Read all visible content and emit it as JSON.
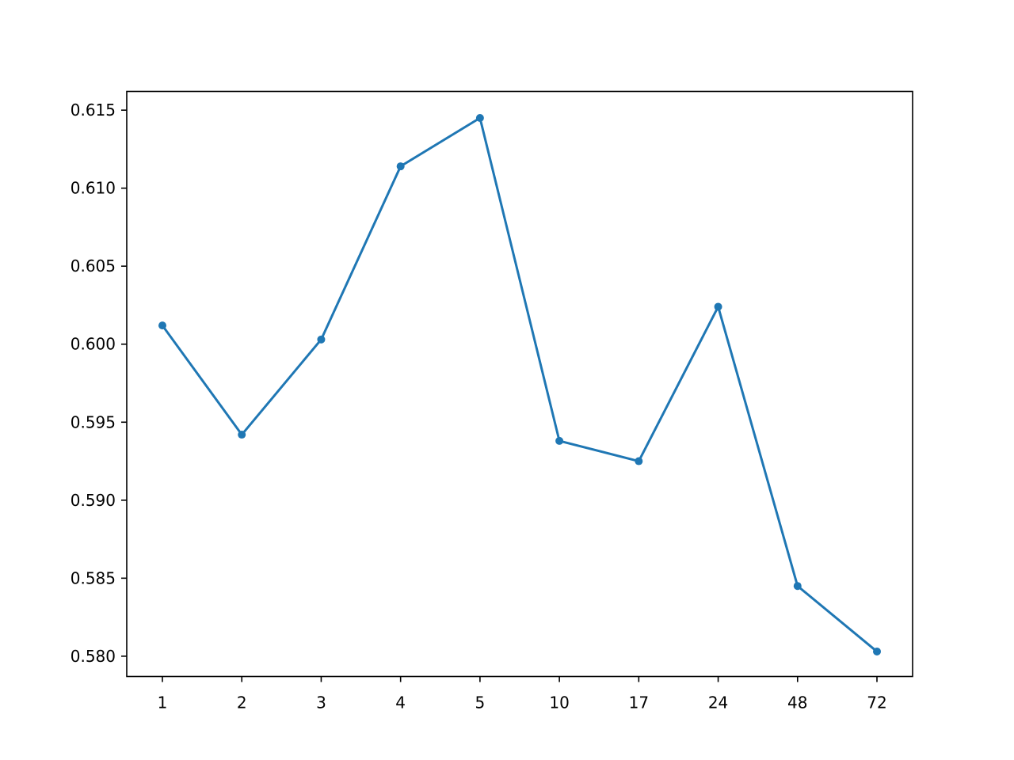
{
  "chart_data": {
    "type": "line",
    "title": "",
    "xlabel": "",
    "ylabel": "",
    "categories": [
      "1",
      "2",
      "3",
      "4",
      "5",
      "10",
      "17",
      "24",
      "48",
      "72"
    ],
    "series": [
      {
        "values": [
          0.6012,
          0.5942,
          0.6003,
          0.6114,
          0.6145,
          0.5938,
          0.5925,
          0.6024,
          0.5845,
          0.5803
        ],
        "color": "#1f77b4",
        "marker": "circle"
      }
    ],
    "ylim": [
      0.5787,
      0.6162
    ],
    "yticks": [
      0.58,
      0.585,
      0.59,
      0.595,
      0.6,
      0.605,
      0.61,
      0.615
    ],
    "ytick_labels": [
      "0.580",
      "0.585",
      "0.590",
      "0.595",
      "0.600",
      "0.605",
      "0.610",
      "0.615"
    ],
    "grid": false,
    "legend": "none"
  }
}
